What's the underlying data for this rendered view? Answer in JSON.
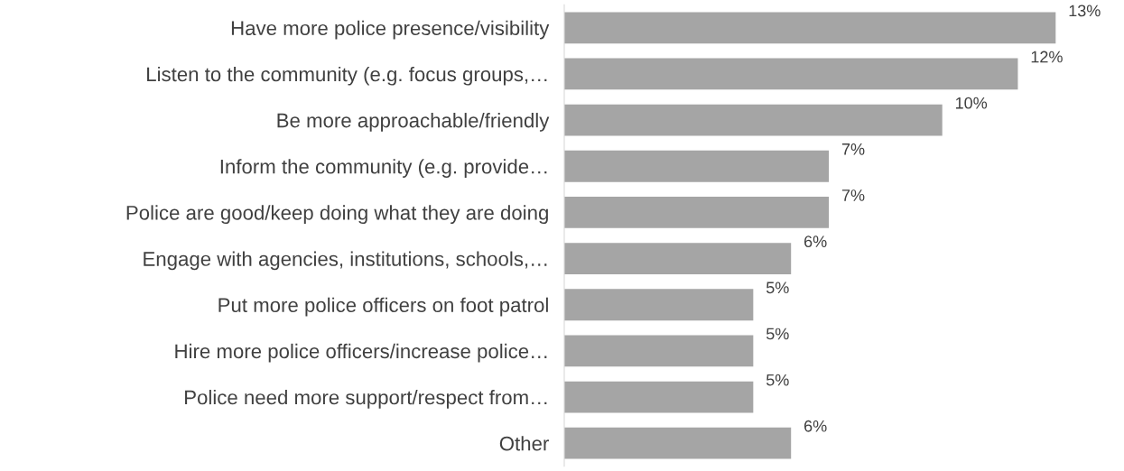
{
  "chart_data": {
    "type": "bar",
    "orientation": "horizontal",
    "categories": [
      "Have more police presence/visibility",
      "Listen to the community (e.g. focus groups,…",
      "Be more approachable/friendly",
      "Inform the community (e.g. provide…",
      "Police are good/keep doing what they are doing",
      "Engage with agencies, institutions, schools,…",
      "Put more police officers on foot patrol",
      "Hire more police officers/increase police…",
      "Police need more support/respect from…",
      "Other"
    ],
    "values": [
      13,
      12,
      10,
      7,
      7,
      6,
      5,
      5,
      5,
      6
    ],
    "value_labels": [
      "13%",
      "12%",
      "10%",
      "7%",
      "7%",
      "6%",
      "5%",
      "5%",
      "5%",
      "6%"
    ],
    "color": "#a5a5a5",
    "grid": false,
    "legend": false
  }
}
